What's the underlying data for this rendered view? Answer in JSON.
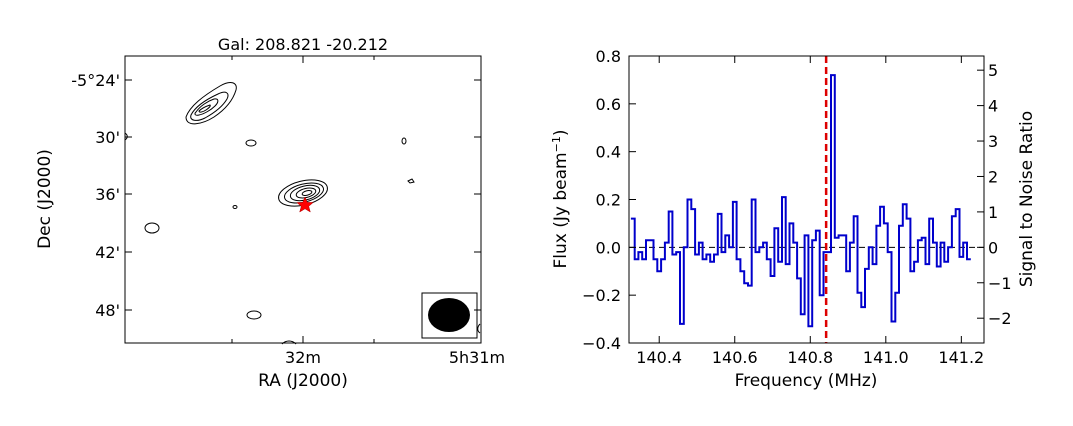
{
  "chart_data": [
    {
      "type": "contour",
      "title": "Gal: 208.821 -20.212",
      "xlabel": "RA (J2000)",
      "ylabel": "Dec (J2000)",
      "x_tick_labels": [
        "32m",
        "5h31m"
      ],
      "y_tick_labels": [
        "-5°24'",
        "30'",
        "36'",
        "42'",
        "48'"
      ],
      "marker": "red-star",
      "beam": "filled-ellipse",
      "colors": {
        "contour": "#000000",
        "marker": "#ff0000"
      }
    },
    {
      "type": "line",
      "drawstyle": "steps",
      "xlabel": "Frequency (MHz)",
      "ylabel": "Flux (Jy beam$^{-1}$)",
      "ylabel_main": "Flux (Jy beam",
      "ylabel_sup": "−1",
      "ylabel_close": ")",
      "y2label": "Signal to Noise Ratio",
      "xlim": [
        140.32,
        141.26
      ],
      "ylim": [
        -0.4,
        0.8
      ],
      "y2lim": [
        -2.7,
        5.4
      ],
      "x_ticks": [
        140.4,
        140.6,
        140.8,
        141.0,
        141.2
      ],
      "x_tick_labels": [
        "140.4",
        "140.6",
        "140.8",
        "141.0",
        "141.2"
      ],
      "y_ticks": [
        -0.4,
        -0.2,
        0.0,
        0.2,
        0.4,
        0.6,
        0.8
      ],
      "y_tick_labels": [
        "−0.4",
        "−0.2",
        "0.0",
        "0.2",
        "0.4",
        "0.6",
        "0.8"
      ],
      "y2_ticks": [
        -2,
        -1,
        0,
        1,
        2,
        3,
        4,
        5
      ],
      "y2_tick_labels": [
        "−2",
        "−1",
        "0",
        "1",
        "2",
        "3",
        "4",
        "5"
      ],
      "zero_line": 0,
      "vline_freq": 140.842,
      "series": [
        {
          "x": [
            140.33,
            140.34,
            140.35,
            140.36,
            140.37,
            140.38,
            140.39,
            140.4,
            140.41,
            140.42,
            140.43,
            140.44,
            140.45,
            140.46,
            140.47,
            140.48,
            140.49,
            140.5,
            140.51,
            140.52,
            140.53,
            140.54,
            140.55,
            140.56,
            140.57,
            140.58,
            140.59,
            140.6,
            140.61,
            140.62,
            140.63,
            140.64,
            140.65,
            140.66,
            140.67,
            140.68,
            140.69,
            140.7,
            140.71,
            140.72,
            140.73,
            140.74,
            140.75,
            140.76,
            140.77,
            140.78,
            140.79,
            140.8,
            140.81,
            140.82,
            140.83,
            140.84,
            140.85,
            140.86,
            140.87,
            140.88,
            140.89,
            140.9,
            140.91,
            140.92,
            140.93,
            140.94,
            140.95,
            140.96,
            140.97,
            140.98,
            140.99,
            141.0,
            141.01,
            141.02,
            141.03,
            141.04,
            141.05,
            141.06,
            141.07,
            141.08,
            141.09,
            141.1,
            141.11,
            141.12,
            141.13,
            141.14,
            141.15,
            141.16,
            141.17,
            141.18,
            141.19,
            141.2,
            141.21,
            141.22
          ],
          "y": [
            0.12,
            -0.05,
            -0.02,
            -0.05,
            0.03,
            0.03,
            -0.05,
            -0.1,
            -0.05,
            0.02,
            0.15,
            -0.03,
            -0.02,
            -0.32,
            0.0,
            0.2,
            0.16,
            -0.03,
            0.02,
            -0.05,
            -0.03,
            -0.06,
            -0.03,
            0.14,
            -0.02,
            0.05,
            0.0,
            0.19,
            -0.05,
            -0.1,
            -0.15,
            -0.16,
            0.2,
            -0.02,
            0.0,
            0.02,
            -0.05,
            -0.12,
            0.08,
            -0.06,
            0.21,
            -0.07,
            0.1,
            0.02,
            -0.13,
            -0.28,
            0.05,
            -0.33,
            0.03,
            0.07,
            -0.2,
            -0.02,
            -0.02,
            0.72,
            0.04,
            0.05,
            0.05,
            -0.1,
            0.02,
            0.13,
            -0.19,
            -0.25,
            -0.09,
            0.0,
            -0.07,
            0.09,
            0.17,
            0.1,
            -0.02,
            -0.31,
            -0.19,
            0.09,
            0.18,
            0.12,
            -0.1,
            -0.06,
            0.03,
            0.04,
            -0.07,
            0.12,
            0.02,
            -0.08,
            0.02,
            -0.06,
            0.0,
            0.13,
            0.16,
            -0.04,
            0.02,
            -0.05
          ]
        }
      ],
      "colors": {
        "series": "#0000cc",
        "vline": "#dd0000",
        "zero": "#000000"
      }
    }
  ]
}
